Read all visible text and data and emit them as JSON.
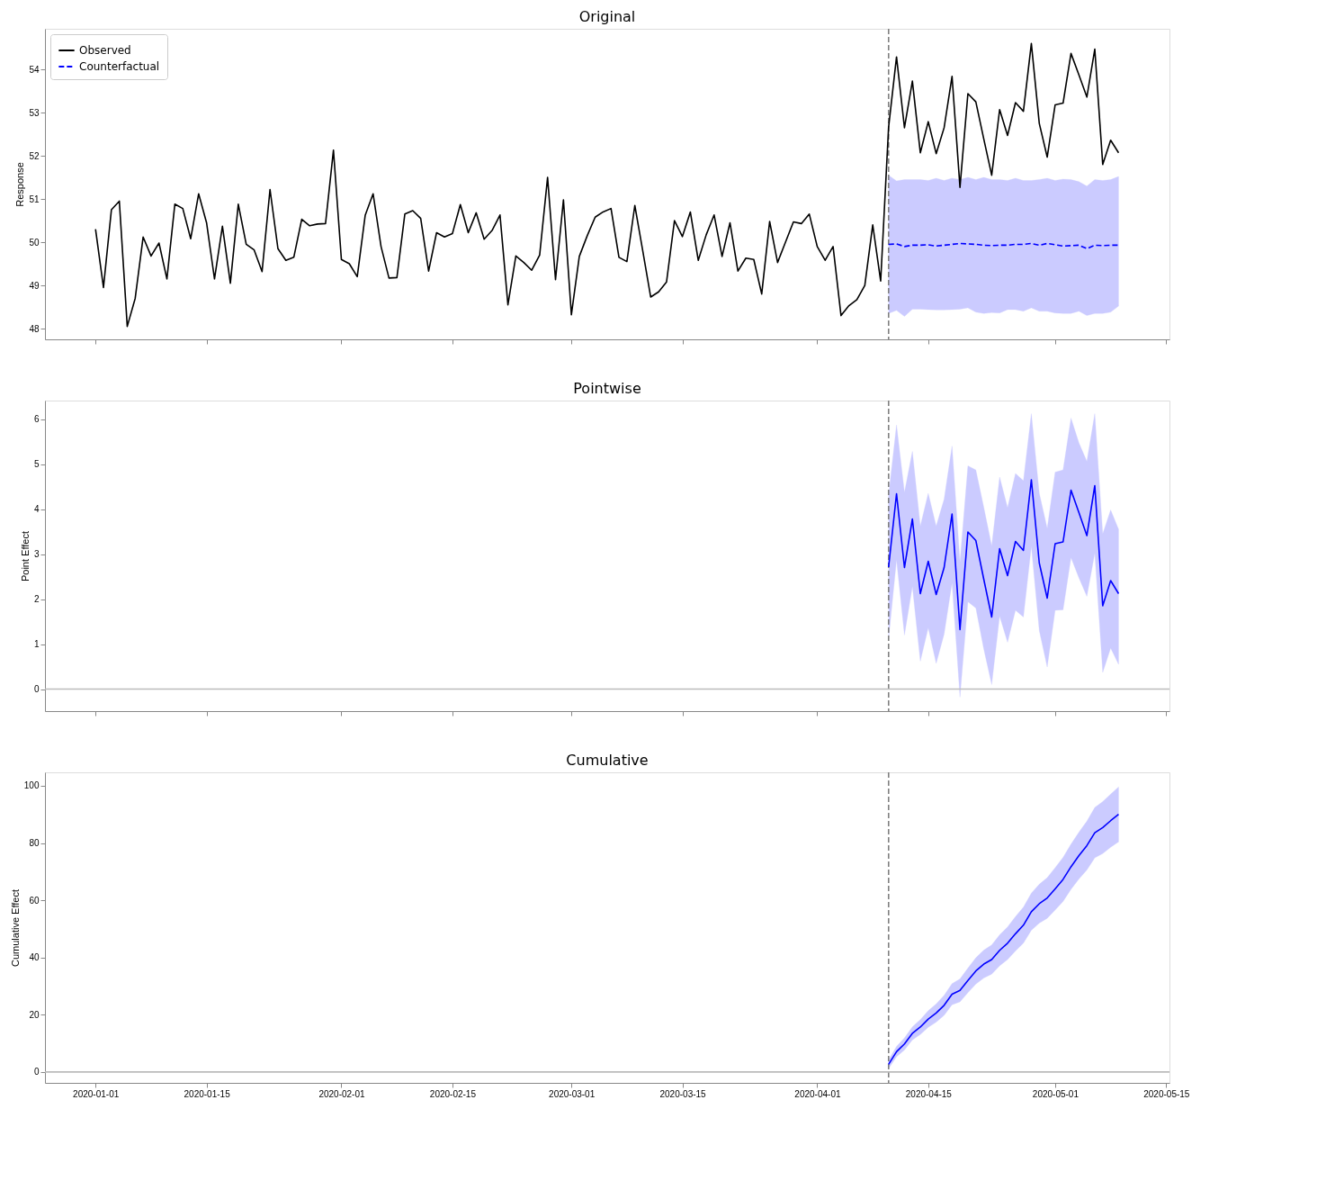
{
  "chart_data": [
    {
      "type": "line",
      "title": "Original",
      "ylabel": "Response",
      "legend": "top left",
      "grid": false,
      "tick_labels": "y",
      "xlim": [
        "2019-12-25T15:00",
        "2020-05-15T10:00"
      ],
      "xticks": [
        "2020-01-01",
        "2020-01-15",
        "2020-02-01",
        "2020-02-15",
        "2020-03-01",
        "2020-03-15",
        "2020-04-01",
        "2020-04-15",
        "2020-05-01",
        "2020-05-15"
      ],
      "ylim": [
        47.75,
        54.94
      ],
      "yticks": [
        48,
        49,
        50,
        51,
        52,
        53,
        54
      ],
      "x": [
        "2020-01-01",
        "2020-01-02",
        "2020-01-03",
        "2020-01-04",
        "2020-01-05",
        "2020-01-06",
        "2020-01-07",
        "2020-01-08",
        "2020-01-09",
        "2020-01-10",
        "2020-01-11",
        "2020-01-12",
        "2020-01-13",
        "2020-01-14",
        "2020-01-15",
        "2020-01-16",
        "2020-01-17",
        "2020-01-18",
        "2020-01-19",
        "2020-01-20",
        "2020-01-21",
        "2020-01-22",
        "2020-01-23",
        "2020-01-24",
        "2020-01-25",
        "2020-01-26",
        "2020-01-27",
        "2020-01-28",
        "2020-01-29",
        "2020-01-30",
        "2020-01-31",
        "2020-02-01",
        "2020-02-02",
        "2020-02-03",
        "2020-02-04",
        "2020-02-05",
        "2020-02-06",
        "2020-02-07",
        "2020-02-08",
        "2020-02-09",
        "2020-02-10",
        "2020-02-11",
        "2020-02-12",
        "2020-02-13",
        "2020-02-14",
        "2020-02-15",
        "2020-02-16",
        "2020-02-17",
        "2020-02-18",
        "2020-02-19",
        "2020-02-20",
        "2020-02-21",
        "2020-02-22",
        "2020-02-23",
        "2020-02-24",
        "2020-02-25",
        "2020-02-26",
        "2020-02-27",
        "2020-02-28",
        "2020-02-29",
        "2020-03-01",
        "2020-03-02",
        "2020-03-03",
        "2020-03-04",
        "2020-03-05",
        "2020-03-06",
        "2020-03-07",
        "2020-03-08",
        "2020-03-09",
        "2020-03-10",
        "2020-03-11",
        "2020-03-12",
        "2020-03-13",
        "2020-03-14",
        "2020-03-15",
        "2020-03-16",
        "2020-03-17",
        "2020-03-18",
        "2020-03-19",
        "2020-03-20",
        "2020-03-21",
        "2020-03-22",
        "2020-03-23",
        "2020-03-24",
        "2020-03-25",
        "2020-03-26",
        "2020-03-27",
        "2020-03-28",
        "2020-03-29",
        "2020-03-30",
        "2020-03-31",
        "2020-04-01",
        "2020-04-02",
        "2020-04-03",
        "2020-04-04",
        "2020-04-05",
        "2020-04-06",
        "2020-04-07",
        "2020-04-08",
        "2020-04-09",
        "2020-04-10",
        "2020-04-11",
        "2020-04-12",
        "2020-04-13",
        "2020-04-14",
        "2020-04-15",
        "2020-04-16",
        "2020-04-17",
        "2020-04-18",
        "2020-04-19",
        "2020-04-20",
        "2020-04-21",
        "2020-04-22",
        "2020-04-23",
        "2020-04-24",
        "2020-04-25",
        "2020-04-26",
        "2020-04-27",
        "2020-04-28",
        "2020-04-29",
        "2020-04-30",
        "2020-05-01",
        "2020-05-02",
        "2020-05-03",
        "2020-05-04",
        "2020-05-05",
        "2020-05-06",
        "2020-05-07",
        "2020-05-08",
        "2020-05-09"
      ],
      "series": [
        {
          "name": "Observed",
          "color": "#000000",
          "line_style": "solid",
          "values": [
            50.3,
            48.95,
            50.75,
            50.95,
            48.05,
            48.7,
            50.12,
            49.68,
            49.98,
            49.15,
            50.88,
            50.78,
            50.08,
            51.12,
            50.45,
            49.15,
            50.37,
            49.05,
            50.88,
            49.95,
            49.82,
            49.32,
            51.22,
            49.85,
            49.58,
            49.65,
            50.53,
            50.38,
            50.42,
            50.43,
            52.13,
            49.6,
            49.5,
            49.2,
            50.62,
            51.12,
            49.9,
            49.17,
            49.18,
            50.65,
            50.73,
            50.55,
            49.33,
            50.22,
            50.12,
            50.2,
            50.87,
            50.22,
            50.68,
            50.07,
            50.27,
            50.63,
            48.55,
            49.68,
            49.53,
            49.35,
            49.7,
            51.5,
            49.13,
            50.98,
            48.32,
            49.67,
            50.15,
            50.58,
            50.7,
            50.78,
            49.65,
            49.55,
            50.85,
            49.8,
            48.73,
            48.85,
            49.08,
            50.5,
            50.13,
            50.7,
            49.58,
            50.17,
            50.63,
            49.67,
            50.45,
            49.33,
            49.63,
            49.6,
            48.8,
            50.48,
            49.53,
            50.0,
            50.47,
            50.43,
            50.65,
            49.9,
            49.58,
            49.9,
            48.3,
            48.53,
            48.67,
            49.0,
            50.4,
            49.1,
            52.66,
            54.29,
            52.65,
            53.73,
            52.07,
            52.79,
            52.05,
            52.65,
            53.84,
            51.27,
            53.44,
            53.25,
            52.39,
            51.55,
            53.07,
            52.47,
            53.23,
            53.03,
            54.6,
            52.75,
            51.97,
            53.18,
            53.22,
            54.37,
            53.87,
            53.36,
            54.47,
            51.8,
            52.36,
            52.07
          ]
        },
        {
          "name": "Counterfactual",
          "color": "#0000ff",
          "line_style": "dashed",
          "x": [
            "2020-04-10",
            "2020-04-11",
            "2020-04-12",
            "2020-04-13",
            "2020-04-14",
            "2020-04-15",
            "2020-04-16",
            "2020-04-17",
            "2020-04-18",
            "2020-04-19",
            "2020-04-20",
            "2020-04-21",
            "2020-04-22",
            "2020-04-23",
            "2020-04-24",
            "2020-04-25",
            "2020-04-26",
            "2020-04-27",
            "2020-04-28",
            "2020-04-29",
            "2020-04-30",
            "2020-05-01",
            "2020-05-02",
            "2020-05-03",
            "2020-05-04",
            "2020-05-05",
            "2020-05-06",
            "2020-05-07",
            "2020-05-08",
            "2020-05-09"
          ],
          "values": [
            49.95,
            49.96,
            49.9,
            49.93,
            49.93,
            49.94,
            49.91,
            49.93,
            49.95,
            49.97,
            49.96,
            49.95,
            49.93,
            49.92,
            49.93,
            49.93,
            49.95,
            49.95,
            49.97,
            49.93,
            49.97,
            49.94,
            49.91,
            49.92,
            49.93,
            49.85,
            49.93,
            49.92,
            49.93,
            49.93
          ],
          "lower": [
            48.35,
            48.42,
            48.28,
            48.45,
            48.45,
            48.44,
            48.43,
            48.43,
            48.44,
            48.45,
            48.48,
            48.38,
            48.35,
            48.37,
            48.36,
            48.44,
            48.44,
            48.4,
            48.48,
            48.4,
            48.4,
            48.36,
            48.35,
            48.35,
            48.4,
            48.3,
            48.35,
            48.35,
            48.38,
            48.52
          ],
          "upper": [
            51.55,
            51.42,
            51.45,
            51.45,
            51.45,
            51.43,
            51.48,
            51.43,
            51.48,
            51.45,
            51.5,
            51.45,
            51.5,
            51.45,
            51.45,
            51.43,
            51.48,
            51.43,
            51.43,
            51.45,
            51.48,
            51.43,
            51.46,
            51.45,
            51.4,
            51.3,
            51.45,
            51.43,
            51.45,
            51.52
          ]
        }
      ],
      "ref_lines": [
        {
          "axis": "x",
          "value": "2020-04-10",
          "color": "#808080",
          "line_style": "dashed"
        }
      ]
    },
    {
      "type": "line",
      "title": "Pointwise",
      "ylabel": "Point Effect",
      "grid": false,
      "tick_labels": "y",
      "xlim": [
        "2019-12-25T15:00",
        "2020-05-15T10:00"
      ],
      "xticks": [
        "2020-01-01",
        "2020-01-15",
        "2020-02-01",
        "2020-02-15",
        "2020-03-01",
        "2020-03-15",
        "2020-04-01",
        "2020-04-15",
        "2020-05-01",
        "2020-05-15"
      ],
      "ylim": [
        -0.49,
        6.41
      ],
      "yticks": [
        0,
        1,
        2,
        3,
        4,
        5,
        6
      ],
      "x": [
        "2020-04-10",
        "2020-04-11",
        "2020-04-12",
        "2020-04-13",
        "2020-04-14",
        "2020-04-15",
        "2020-04-16",
        "2020-04-17",
        "2020-04-18",
        "2020-04-19",
        "2020-04-20",
        "2020-04-21",
        "2020-04-22",
        "2020-04-23",
        "2020-04-24",
        "2020-04-25",
        "2020-04-26",
        "2020-04-27",
        "2020-04-28",
        "2020-04-29",
        "2020-04-30",
        "2020-05-01",
        "2020-05-02",
        "2020-05-03",
        "2020-05-04",
        "2020-05-05",
        "2020-05-06",
        "2020-05-07",
        "2020-05-08",
        "2020-05-09"
      ],
      "series": [
        {
          "color": "#0000ff",
          "line_style": "solid",
          "values": [
            2.71,
            4.34,
            2.7,
            3.78,
            2.12,
            2.84,
            2.1,
            2.7,
            3.89,
            1.32,
            3.49,
            3.3,
            2.44,
            1.6,
            3.12,
            2.52,
            3.28,
            3.08,
            4.65,
            2.8,
            2.02,
            3.23,
            3.27,
            4.42,
            3.92,
            3.41,
            4.52,
            1.85,
            2.41,
            2.12
          ],
          "lower": [
            1.11,
            2.87,
            1.2,
            2.28,
            0.62,
            1.36,
            0.57,
            1.22,
            2.36,
            -0.18,
            1.94,
            1.8,
            0.89,
            0.1,
            1.62,
            1.04,
            1.75,
            1.6,
            3.17,
            1.3,
            0.49,
            1.75,
            1.76,
            2.92,
            2.47,
            2.06,
            3.02,
            0.37,
            0.91,
            0.55
          ],
          "upper": [
            4.31,
            5.87,
            4.37,
            5.28,
            3.62,
            4.35,
            3.62,
            4.22,
            5.4,
            2.82,
            4.96,
            4.87,
            4.04,
            3.18,
            4.71,
            4.03,
            4.79,
            4.63,
            6.12,
            4.35,
            3.57,
            4.82,
            4.87,
            6.02,
            5.47,
            5.06,
            6.12,
            3.45,
            3.98,
            3.55
          ]
        }
      ],
      "ref_lines": [
        {
          "axis": "x",
          "value": "2020-04-10",
          "color": "#808080",
          "line_style": "dashed"
        },
        {
          "axis": "y",
          "value": 0,
          "color": "#bbbbbb",
          "line_style": "solid"
        }
      ]
    },
    {
      "type": "line",
      "title": "Cumulative",
      "ylabel": "Cumulative Effect",
      "grid": false,
      "xlim": [
        "2019-12-25T15:00",
        "2020-05-15T10:00"
      ],
      "xticks": [
        "2020-01-01",
        "2020-01-15",
        "2020-02-01",
        "2020-02-15",
        "2020-03-01",
        "2020-03-15",
        "2020-04-01",
        "2020-04-15",
        "2020-05-01",
        "2020-05-15"
      ],
      "ylim": [
        -3.8,
        104.7
      ],
      "yticks": [
        0,
        20,
        40,
        60,
        80,
        100
      ],
      "x": [
        "2020-04-10",
        "2020-04-11",
        "2020-04-12",
        "2020-04-13",
        "2020-04-14",
        "2020-04-15",
        "2020-04-16",
        "2020-04-17",
        "2020-04-18",
        "2020-04-19",
        "2020-04-20",
        "2020-04-21",
        "2020-04-22",
        "2020-04-23",
        "2020-04-24",
        "2020-04-25",
        "2020-04-26",
        "2020-04-27",
        "2020-04-28",
        "2020-04-29",
        "2020-04-30",
        "2020-05-01",
        "2020-05-02",
        "2020-05-03",
        "2020-05-04",
        "2020-05-05",
        "2020-05-06",
        "2020-05-07",
        "2020-05-08",
        "2020-05-09"
      ],
      "series": [
        {
          "color": "#0000ff",
          "line_style": "solid",
          "values": [
            2.7,
            7.1,
            9.8,
            13.5,
            15.7,
            18.5,
            20.6,
            23.3,
            27.2,
            28.5,
            32.0,
            35.3,
            37.7,
            39.3,
            42.5,
            45.0,
            48.3,
            51.3,
            56.0,
            58.8,
            60.8,
            64.0,
            67.3,
            71.7,
            75.6,
            79.1,
            83.6,
            85.4,
            87.8,
            90.0
          ],
          "lower": [
            1.2,
            5.3,
            7.7,
            11.2,
            13.1,
            15.6,
            17.4,
            19.8,
            23.5,
            24.5,
            27.7,
            30.7,
            32.8,
            34.2,
            37.1,
            39.3,
            42.3,
            45.0,
            49.5,
            52.0,
            53.7,
            56.6,
            59.6,
            63.8,
            67.4,
            70.6,
            74.8,
            76.3,
            78.5,
            80.4
          ],
          "upper": [
            4.2,
            8.9,
            11.9,
            15.8,
            18.3,
            21.4,
            23.8,
            26.8,
            30.9,
            32.5,
            36.3,
            39.9,
            42.6,
            44.4,
            47.9,
            50.7,
            54.3,
            57.6,
            62.5,
            65.6,
            67.9,
            71.4,
            75.0,
            79.6,
            83.8,
            87.6,
            92.4,
            94.5,
            97.1,
            99.6
          ]
        }
      ],
      "ref_lines": [
        {
          "axis": "x",
          "value": "2020-04-10",
          "color": "#808080",
          "line_style": "dashed"
        },
        {
          "axis": "y",
          "value": 0,
          "color": "#bbbbbb",
          "line_style": "solid"
        }
      ]
    }
  ]
}
